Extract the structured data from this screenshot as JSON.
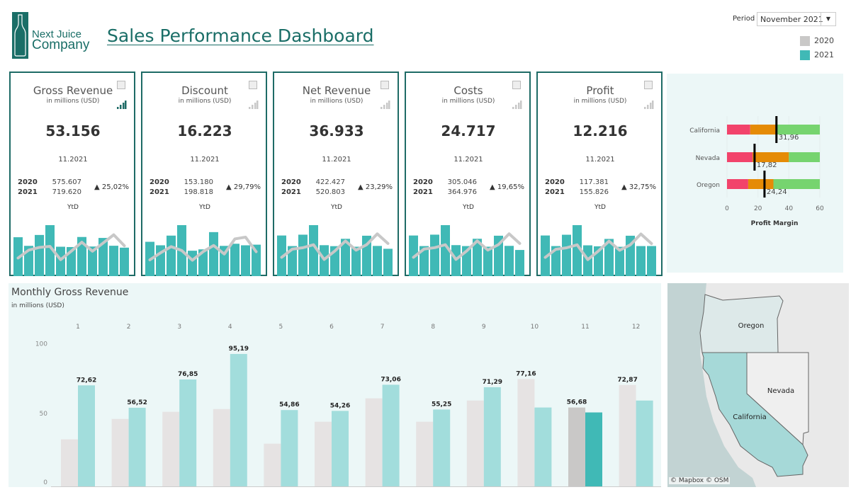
{
  "header": {
    "brand_line1": "Next Juice",
    "brand_line2": "Company",
    "title": "Sales Performance Dashboard"
  },
  "filter": {
    "label": "Period",
    "value": "November 2021"
  },
  "legend": [
    {
      "label": "2020",
      "color": "#c9c8c7"
    },
    {
      "label": "2021",
      "color": "#40b9b6"
    }
  ],
  "cards": [
    {
      "name": "Gross Revenue",
      "sub": "in millions (USD)",
      "value": "53.156",
      "date": "11.2021",
      "y2020_label": "2020",
      "y2020": "575.607",
      "y2021_label": "2021",
      "y2021": "719.620",
      "change": "▲ 25,02%",
      "ytd": "YtD",
      "active": true,
      "spark_2021": [
        72.62,
        56.52,
        76.85,
        95.19,
        54.86,
        54.26,
        73.06,
        55.25,
        71.29,
        56.7,
        53.16
      ],
      "spark_2020": [
        33.8,
        48.5,
        53.6,
        55.6,
        30.7,
        46.5,
        63.3,
        46.5,
        61.7,
        77.16,
        56.68
      ]
    },
    {
      "name": "Discount",
      "sub": "in millions (USD)",
      "value": "16.223",
      "date": "11.2021",
      "y2020_label": "2020",
      "y2020": "153.180",
      "y2021_label": "2021",
      "y2021": "198.818",
      "change": "▲ 29,79%",
      "ytd": "YtD",
      "active": false,
      "spark_2021": [
        17.7,
        15.9,
        20.9,
        26.3,
        13.1,
        13.8,
        22.7,
        15.6,
        16.7,
        15.9,
        16.22
      ],
      "spark_2020": [
        8.4,
        12.0,
        15.2,
        13.2,
        8.2,
        12.6,
        15.8,
        11.4,
        19.2,
        20.1,
        12.6
      ]
    },
    {
      "name": "Net Revenue",
      "sub": "in millions (USD)",
      "value": "36.933",
      "date": "11.2021",
      "y2020_label": "2020",
      "y2020": "422.427",
      "y2021_label": "2021",
      "y2021": "520.803",
      "change": "▲ 23,29%",
      "ytd": "YtD",
      "active": false,
      "spark_2021": [
        54.9,
        40.6,
        56.0,
        68.9,
        41.8,
        40.5,
        50.4,
        39.7,
        54.6,
        40.8,
        36.93
      ],
      "spark_2020": [
        25.4,
        36.5,
        38.4,
        42.4,
        22.5,
        33.9,
        47.5,
        35.1,
        42.5,
        57.1,
        44.1
      ]
    },
    {
      "name": "Costs",
      "sub": "in millions (USD)",
      "value": "24.717",
      "date": "11.2021",
      "y2020_label": "2020",
      "y2020": "305.046",
      "y2021_label": "2021",
      "y2021": "364.976",
      "change": "▲ 19,65%",
      "ytd": "YtD",
      "active": false,
      "spark_2021": [
        38.4,
        28.4,
        39.2,
        48.2,
        29.3,
        28.4,
        35.3,
        27.8,
        38.2,
        28.6,
        24.72
      ],
      "spark_2020": [
        17.8,
        25.6,
        26.9,
        29.7,
        15.8,
        23.7,
        33.3,
        24.6,
        29.8,
        40.0,
        30.9
      ]
    },
    {
      "name": "Profit",
      "sub": "in millions (USD)",
      "value": "12.216",
      "date": "11.2021",
      "y2020_label": "2020",
      "y2020": "117.381",
      "y2021_label": "2021",
      "y2021": "155.826",
      "change": "▲ 32,75%",
      "ytd": "YtD",
      "active": false,
      "spark_2021": [
        16.5,
        12.2,
        16.8,
        20.7,
        12.5,
        12.1,
        15.1,
        11.9,
        16.4,
        12.2,
        12.22
      ],
      "spark_2020": [
        7.6,
        10.9,
        11.5,
        12.7,
        6.7,
        10.2,
        14.2,
        10.5,
        12.7,
        17.1,
        13.2
      ]
    }
  ],
  "profit_margin": {
    "xlabel": "Profit Margin",
    "ticks": [
      "0",
      "20",
      "40",
      "60"
    ],
    "xlim": [
      0,
      60
    ],
    "colors": {
      "poor": "#f2436b",
      "fair": "#e58b06",
      "good": "#76d46f",
      "marker": "#000000"
    },
    "rows": [
      {
        "state": "California",
        "bands": [
          15,
          32,
          60
        ],
        "value": 31.96,
        "label": "31,96"
      },
      {
        "state": "Nevada",
        "bands": [
          16.5,
          40,
          60
        ],
        "value": 17.82,
        "label": "17,82"
      },
      {
        "state": "Oregon",
        "bands": [
          13.7,
          30,
          60
        ],
        "value": 24.24,
        "label": "24,24"
      }
    ]
  },
  "chart_data": {
    "type": "bar",
    "title": "Monthly Gross Revenue",
    "subtitle": "in millions (USD)",
    "categories": [
      "1",
      "2",
      "3",
      "4",
      "5",
      "6",
      "7",
      "8",
      "9",
      "10",
      "11",
      "12"
    ],
    "ylim": [
      0,
      100
    ],
    "yticks": [
      "0",
      "50",
      "100"
    ],
    "highlight_category": "11",
    "series": [
      {
        "name": "2020",
        "color": "#e6e3e3",
        "highlight_color": "#c9c8c7",
        "values": [
          33.8,
          48.5,
          53.6,
          55.6,
          30.7,
          46.5,
          63.3,
          46.5,
          61.7,
          77.16,
          56.68,
          72.87
        ]
      },
      {
        "name": "2021",
        "color": "#a2dddc",
        "highlight_color": "#40b9b6",
        "values": [
          72.62,
          56.52,
          76.85,
          95.19,
          54.86,
          54.26,
          73.06,
          55.25,
          71.29,
          56.7,
          53.16,
          61.7
        ]
      }
    ],
    "data_labels": [
      "72,62",
      "56,52",
      "76,85",
      "95,19",
      "54,86",
      "54,26",
      "73,06",
      "55,25",
      "71,29",
      "77,16",
      "56,68",
      "72,87"
    ]
  },
  "map": {
    "states": [
      {
        "name": "Oregon",
        "color": "#dde9e9"
      },
      {
        "name": "Nevada",
        "color": "#efefef"
      },
      {
        "name": "California",
        "color": "#a6d9d8"
      }
    ],
    "credit": "© Mapbox © OSM"
  }
}
